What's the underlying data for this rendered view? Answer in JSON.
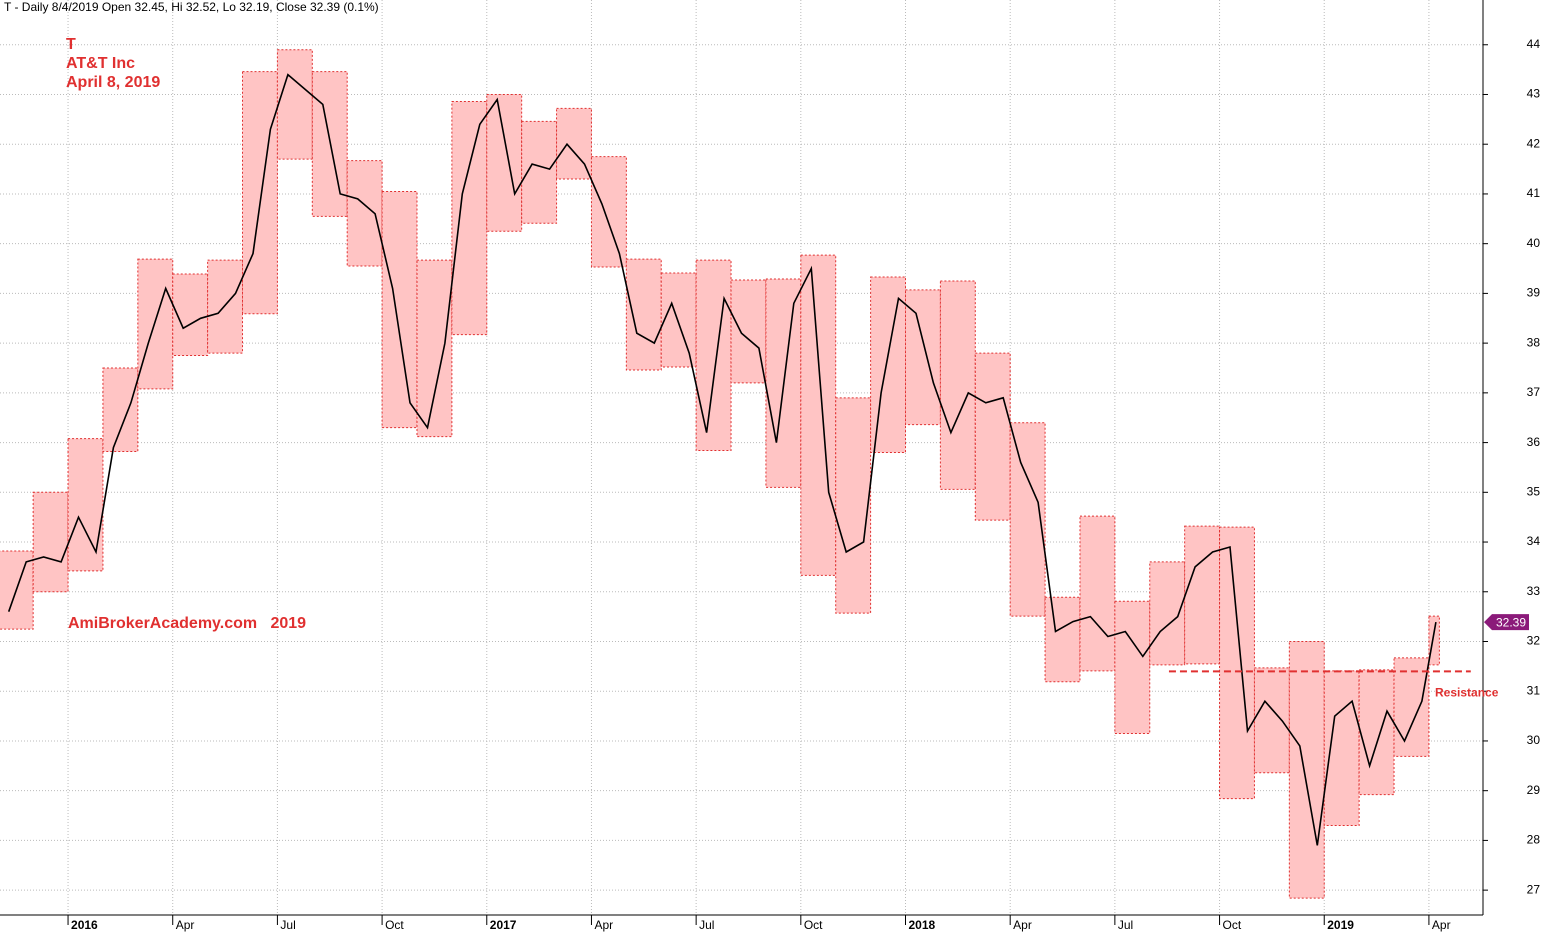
{
  "chart_data": {
    "type": "line",
    "title": "T - Daily 8/4/2019 Open 32.45, Hi 32.52, Lo 32.19, Close 32.39 (0.1%)",
    "annotations": {
      "symbol": "T",
      "company": "AT&T Inc",
      "date": "April 8, 2019",
      "watermark": "AmiBrokerAcademy.com   2019"
    },
    "resistance": {
      "label": "Resistance",
      "value": 31.4,
      "color": "#e03030"
    },
    "color": "#000000",
    "x": [
      0.3,
      0.8,
      1.3,
      1.8,
      2.3,
      2.8,
      3.3,
      3.8,
      4.3,
      4.8,
      5.3,
      5.8,
      6.3,
      6.8,
      7.3,
      7.8,
      8.3,
      8.8,
      9.3,
      9.8,
      10.3,
      10.8,
      11.3,
      11.8,
      12.3,
      12.8,
      13.3,
      13.8,
      14.3,
      14.8,
      15.3,
      15.8,
      16.3,
      16.8,
      17.3,
      17.8,
      18.3,
      18.8,
      19.3,
      19.8,
      20.3,
      20.8,
      21.3,
      21.8,
      22.3,
      22.8,
      23.3,
      23.8,
      24.3,
      24.8,
      25.3,
      25.8,
      26.3,
      26.8,
      27.3,
      27.8,
      28.3,
      28.8,
      29.3,
      29.8,
      30.3,
      30.8,
      31.3,
      31.8,
      32.3,
      32.8,
      33.3,
      33.8,
      34.3,
      34.8,
      35.3,
      35.8,
      36.3,
      36.8,
      37.3,
      37.8,
      38.3,
      38.8,
      39.3,
      39.8,
      40.3,
      40.8,
      41.2
    ],
    "values": [
      32.6,
      33.6,
      33.7,
      33.6,
      34.5,
      33.8,
      35.9,
      36.8,
      38.0,
      39.1,
      38.3,
      38.5,
      38.6,
      39.0,
      39.8,
      42.3,
      43.4,
      43.1,
      42.8,
      41.0,
      40.9,
      40.6,
      39.1,
      36.8,
      36.3,
      38.0,
      41.0,
      42.4,
      42.9,
      41.0,
      41.6,
      41.5,
      42.0,
      41.6,
      40.8,
      39.8,
      38.2,
      38.0,
      38.8,
      37.8,
      36.2,
      38.9,
      38.2,
      37.9,
      36.0,
      38.8,
      39.5,
      35.0,
      33.8,
      34.0,
      37.0,
      38.9,
      38.6,
      37.2,
      36.2,
      37.0,
      36.8,
      36.9,
      35.6,
      34.8,
      32.2,
      32.4,
      32.5,
      32.1,
      32.2,
      31.7,
      32.2,
      32.5,
      33.5,
      33.8,
      33.9,
      30.2,
      30.8,
      30.4,
      29.9,
      27.9,
      30.5,
      30.8,
      29.5,
      30.6,
      30.0,
      30.8,
      32.39
    ],
    "ranges": {
      "color": "#ffc4c4",
      "stroke": "#e03030",
      "x": [
        0,
        1,
        2,
        3,
        4,
        5,
        6,
        7,
        8,
        9,
        10,
        11,
        12,
        13,
        14,
        15,
        16,
        17,
        18,
        19,
        20,
        21,
        22,
        23,
        24,
        25,
        26,
        27,
        28,
        29,
        30,
        31,
        32,
        33,
        34,
        35,
        36,
        37,
        38,
        39,
        40,
        41
      ],
      "low": [
        32.25,
        33.0,
        33.42,
        35.82,
        37.08,
        37.75,
        37.8,
        38.59,
        41.7,
        40.55,
        39.55,
        36.3,
        36.12,
        38.17,
        40.25,
        40.41,
        41.3,
        39.53,
        37.46,
        37.52,
        35.84,
        37.2,
        35.1,
        33.33,
        32.57,
        35.8,
        36.36,
        35.06,
        34.44,
        32.51,
        31.19,
        31.41,
        30.15,
        31.53,
        31.55,
        28.84,
        29.36,
        26.84,
        28.3,
        28.92,
        29.69,
        31.53
      ],
      "high": [
        33.82,
        35.0,
        36.08,
        37.5,
        39.69,
        39.39,
        39.67,
        43.46,
        43.9,
        43.46,
        41.67,
        41.05,
        39.67,
        42.86,
        43.0,
        42.46,
        42.72,
        41.75,
        39.69,
        39.41,
        39.67,
        39.27,
        39.29,
        39.77,
        36.9,
        39.33,
        39.07,
        39.25,
        37.8,
        36.4,
        32.89,
        34.52,
        32.81,
        33.6,
        34.32,
        34.3,
        31.47,
        32.0,
        31.41,
        31.43,
        31.67,
        32.51
      ]
    },
    "xlim": [
      0.05,
      42.55
    ],
    "xticks": [
      {
        "value": 2,
        "label": "2016"
      },
      {
        "value": 5,
        "label": "Apr"
      },
      {
        "value": 8,
        "label": "Jul"
      },
      {
        "value": 11,
        "label": "Oct"
      },
      {
        "value": 14,
        "label": "2017"
      },
      {
        "value": 17,
        "label": "Apr"
      },
      {
        "value": 20,
        "label": "Jul"
      },
      {
        "value": 23,
        "label": "Oct"
      },
      {
        "value": 26,
        "label": "2018"
      },
      {
        "value": 29,
        "label": "Apr"
      },
      {
        "value": 32,
        "label": "Jul"
      },
      {
        "value": 35,
        "label": "Oct"
      },
      {
        "value": 38,
        "label": "2019"
      },
      {
        "value": 41,
        "label": "Apr"
      }
    ],
    "ylim": [
      26.5,
      44.9
    ],
    "yticks": [
      27,
      28,
      29,
      30,
      31,
      32,
      33,
      34,
      35,
      36,
      37,
      38,
      39,
      40,
      41,
      42,
      43,
      44
    ],
    "grid": true,
    "last_label_color": "#8b1a7a"
  }
}
